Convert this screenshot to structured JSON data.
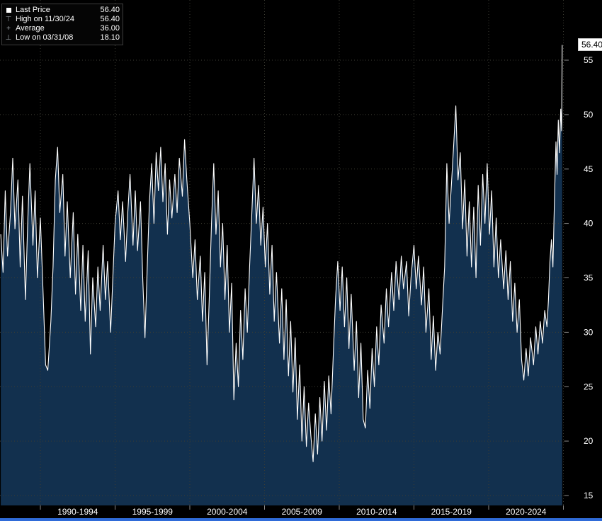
{
  "window": {
    "bg": "#000000"
  },
  "legend": {
    "rows": [
      {
        "icon": "square-marker",
        "label": "Last Price",
        "value": "56.40"
      },
      {
        "icon": "high-marker",
        "glyph": "⊤",
        "label": "High on 11/30/24",
        "value": "56.40"
      },
      {
        "icon": "average-marker",
        "glyph": "+",
        "label": "Average",
        "value": "36.00"
      },
      {
        "icon": "low-marker",
        "glyph": "⊥",
        "label": "Low on 03/31/08",
        "value": "18.10"
      }
    ]
  },
  "last_price_badge": "56.40",
  "colors": {
    "background": "#000000",
    "line": "#ffffff",
    "area_fill": "#12304e",
    "grid": "#3d3d33",
    "axis_text": "#ffffff",
    "tick": "#8a8a8a",
    "badge_bg": "#ffffff",
    "badge_text": "#000000",
    "bottom_bar": "#2f6bd8"
  },
  "chart_data": {
    "type": "area",
    "title": "",
    "xlabel": "",
    "ylabel": "",
    "legend_position": "top-left",
    "grid": true,
    "y_ticks": [
      15,
      20,
      25,
      30,
      35,
      40,
      45,
      50,
      55
    ],
    "ylim": [
      15,
      55
    ],
    "grid_years": [
      1990,
      1995,
      2000,
      2005,
      2010,
      2015,
      2020,
      2025
    ],
    "categories": [
      "1990-1994",
      "1995-1999",
      "2000-2004",
      "2005-2009",
      "2010-2014",
      "2015-2019",
      "2020-2024"
    ],
    "category_center_years": [
      1992.5,
      1997.5,
      2002.5,
      2007.5,
      2012.5,
      2017.5,
      2022.5
    ],
    "stats": {
      "last": 56.4,
      "high": {
        "date": "11/30/24",
        "value": 56.4
      },
      "average": 36.0,
      "low": {
        "date": "03/31/08",
        "value": 18.1
      }
    },
    "layout": {
      "x0px": 57,
      "x0year": 1990,
      "pxPerYear": 21.1,
      "yTopPx": 85,
      "yTopValue": 55,
      "pxPerUnit": 15.375,
      "plotLeft": 0,
      "plotRight": 797,
      "plotTop": 0,
      "plotBottom": 714,
      "yLabelX": 824,
      "xLabelY": 727
    },
    "series": [
      {
        "name": "Last Price",
        "points": [
          [
            1987.35,
            39
          ],
          [
            1987.5,
            35.5
          ],
          [
            1987.65,
            43
          ],
          [
            1987.8,
            37
          ],
          [
            1988.0,
            41
          ],
          [
            1988.15,
            46
          ],
          [
            1988.3,
            39.5
          ],
          [
            1988.5,
            44
          ],
          [
            1988.65,
            36
          ],
          [
            1988.8,
            42.5
          ],
          [
            1989.0,
            33
          ],
          [
            1989.15,
            40
          ],
          [
            1989.3,
            45.5
          ],
          [
            1989.5,
            38
          ],
          [
            1989.65,
            43
          ],
          [
            1989.8,
            35
          ],
          [
            1990.0,
            40.5
          ],
          [
            1990.2,
            33
          ],
          [
            1990.35,
            27
          ],
          [
            1990.5,
            26.5
          ],
          [
            1990.7,
            31
          ],
          [
            1990.85,
            36
          ],
          [
            1991.0,
            44
          ],
          [
            1991.15,
            47
          ],
          [
            1991.3,
            41
          ],
          [
            1991.5,
            44.5
          ],
          [
            1991.65,
            37
          ],
          [
            1991.8,
            42
          ],
          [
            1992.0,
            35
          ],
          [
            1992.2,
            41
          ],
          [
            1992.35,
            33.5
          ],
          [
            1992.5,
            39
          ],
          [
            1992.7,
            32
          ],
          [
            1992.85,
            38
          ],
          [
            1993.0,
            31
          ],
          [
            1993.2,
            37.5
          ],
          [
            1993.35,
            28
          ],
          [
            1993.5,
            35
          ],
          [
            1993.7,
            30.5
          ],
          [
            1993.85,
            36
          ],
          [
            1994.0,
            32
          ],
          [
            1994.2,
            38
          ],
          [
            1994.35,
            33
          ],
          [
            1994.5,
            36.5
          ],
          [
            1994.7,
            30
          ],
          [
            1994.85,
            35
          ],
          [
            1995.0,
            40
          ],
          [
            1995.2,
            43
          ],
          [
            1995.35,
            38.5
          ],
          [
            1995.5,
            42
          ],
          [
            1995.7,
            36.5
          ],
          [
            1995.85,
            41
          ],
          [
            1996.0,
            44.5
          ],
          [
            1996.2,
            38
          ],
          [
            1996.35,
            43
          ],
          [
            1996.5,
            37.5
          ],
          [
            1996.7,
            42
          ],
          [
            1996.85,
            35
          ],
          [
            1997.0,
            29.5
          ],
          [
            1997.15,
            36
          ],
          [
            1997.3,
            42
          ],
          [
            1997.45,
            45.5
          ],
          [
            1997.6,
            40
          ],
          [
            1997.75,
            46.5
          ],
          [
            1997.9,
            43
          ],
          [
            1998.05,
            47
          ],
          [
            1998.2,
            42
          ],
          [
            1998.35,
            45.5
          ],
          [
            1998.5,
            39
          ],
          [
            1998.65,
            44
          ],
          [
            1998.8,
            40.5
          ],
          [
            1999.0,
            44.5
          ],
          [
            1999.15,
            41
          ],
          [
            1999.3,
            46
          ],
          [
            1999.5,
            42.5
          ],
          [
            1999.65,
            47.7
          ],
          [
            1999.8,
            44
          ],
          [
            2000.0,
            40
          ],
          [
            2000.2,
            35
          ],
          [
            2000.35,
            38.5
          ],
          [
            2000.5,
            33
          ],
          [
            2000.7,
            37
          ],
          [
            2000.85,
            31
          ],
          [
            2001.0,
            35.5
          ],
          [
            2001.15,
            27
          ],
          [
            2001.3,
            33
          ],
          [
            2001.45,
            40
          ],
          [
            2001.6,
            45.5
          ],
          [
            2001.75,
            39
          ],
          [
            2001.9,
            43
          ],
          [
            2002.05,
            36
          ],
          [
            2002.2,
            40
          ],
          [
            2002.35,
            33
          ],
          [
            2002.5,
            38
          ],
          [
            2002.65,
            30
          ],
          [
            2002.8,
            34.5
          ],
          [
            2002.95,
            23.8
          ],
          [
            2003.1,
            29
          ],
          [
            2003.25,
            25
          ],
          [
            2003.4,
            32
          ],
          [
            2003.55,
            27.5
          ],
          [
            2003.7,
            34
          ],
          [
            2003.85,
            30
          ],
          [
            2004.0,
            36
          ],
          [
            2004.15,
            41
          ],
          [
            2004.3,
            46
          ],
          [
            2004.45,
            40
          ],
          [
            2004.6,
            43.5
          ],
          [
            2004.75,
            38
          ],
          [
            2004.9,
            41.5
          ],
          [
            2005.05,
            36
          ],
          [
            2005.2,
            40
          ],
          [
            2005.35,
            33.5
          ],
          [
            2005.5,
            38
          ],
          [
            2005.65,
            31
          ],
          [
            2005.8,
            35.5
          ],
          [
            2006.0,
            29
          ],
          [
            2006.15,
            34
          ],
          [
            2006.3,
            27.5
          ],
          [
            2006.45,
            33
          ],
          [
            2006.6,
            26
          ],
          [
            2006.75,
            31
          ],
          [
            2006.9,
            24.5
          ],
          [
            2007.05,
            29.5
          ],
          [
            2007.2,
            22
          ],
          [
            2007.35,
            27
          ],
          [
            2007.5,
            20
          ],
          [
            2007.65,
            25
          ],
          [
            2007.8,
            19.5
          ],
          [
            2007.95,
            23.5
          ],
          [
            2008.1,
            20.5
          ],
          [
            2008.25,
            18.1
          ],
          [
            2008.4,
            22.5
          ],
          [
            2008.55,
            18.8
          ],
          [
            2008.7,
            24
          ],
          [
            2008.85,
            20
          ],
          [
            2009.0,
            25.5
          ],
          [
            2009.15,
            21
          ],
          [
            2009.3,
            26
          ],
          [
            2009.45,
            22.5
          ],
          [
            2009.6,
            28
          ],
          [
            2009.75,
            33
          ],
          [
            2009.9,
            36.5
          ],
          [
            2010.05,
            32
          ],
          [
            2010.2,
            36
          ],
          [
            2010.35,
            30.5
          ],
          [
            2010.5,
            35
          ],
          [
            2010.65,
            28.5
          ],
          [
            2010.8,
            33.5
          ],
          [
            2011.0,
            26.5
          ],
          [
            2011.15,
            31
          ],
          [
            2011.3,
            24
          ],
          [
            2011.45,
            29
          ],
          [
            2011.6,
            22
          ],
          [
            2011.75,
            21.2
          ],
          [
            2011.9,
            26.5
          ],
          [
            2012.05,
            23
          ],
          [
            2012.2,
            28.5
          ],
          [
            2012.35,
            25
          ],
          [
            2012.5,
            30.5
          ],
          [
            2012.65,
            27
          ],
          [
            2012.8,
            32.5
          ],
          [
            2013.0,
            29
          ],
          [
            2013.15,
            34
          ],
          [
            2013.3,
            30.5
          ],
          [
            2013.5,
            35.5
          ],
          [
            2013.65,
            32
          ],
          [
            2013.8,
            36.5
          ],
          [
            2014.0,
            33
          ],
          [
            2014.15,
            37
          ],
          [
            2014.3,
            34
          ],
          [
            2014.5,
            36.5
          ],
          [
            2014.65,
            31.5
          ],
          [
            2014.8,
            35
          ],
          [
            2015.0,
            38
          ],
          [
            2015.15,
            34
          ],
          [
            2015.3,
            37
          ],
          [
            2015.5,
            32.5
          ],
          [
            2015.65,
            36
          ],
          [
            2015.8,
            30
          ],
          [
            2016.0,
            34
          ],
          [
            2016.15,
            27.5
          ],
          [
            2016.3,
            31.5
          ],
          [
            2016.45,
            26.5
          ],
          [
            2016.6,
            30
          ],
          [
            2016.75,
            28
          ],
          [
            2016.9,
            32
          ],
          [
            2017.05,
            36
          ],
          [
            2017.2,
            45.5
          ],
          [
            2017.35,
            40
          ],
          [
            2017.5,
            43.5
          ],
          [
            2017.65,
            47
          ],
          [
            2017.8,
            50.8
          ],
          [
            2017.95,
            44
          ],
          [
            2018.1,
            46.5
          ],
          [
            2018.25,
            39.5
          ],
          [
            2018.4,
            44
          ],
          [
            2018.55,
            37
          ],
          [
            2018.7,
            42
          ],
          [
            2018.85,
            36
          ],
          [
            2019.0,
            41.5
          ],
          [
            2019.15,
            35
          ],
          [
            2019.3,
            43.5
          ],
          [
            2019.45,
            38
          ],
          [
            2019.6,
            44.5
          ],
          [
            2019.75,
            40
          ],
          [
            2019.9,
            45.5
          ],
          [
            2020.05,
            39
          ],
          [
            2020.2,
            43
          ],
          [
            2020.35,
            36
          ],
          [
            2020.5,
            40.5
          ],
          [
            2020.65,
            35
          ],
          [
            2020.8,
            38.5
          ],
          [
            2021.0,
            34
          ],
          [
            2021.15,
            37.5
          ],
          [
            2021.3,
            33
          ],
          [
            2021.45,
            36.5
          ],
          [
            2021.6,
            31
          ],
          [
            2021.75,
            34.5
          ],
          [
            2021.9,
            30
          ],
          [
            2022.05,
            33
          ],
          [
            2022.2,
            27.5
          ],
          [
            2022.35,
            25.6
          ],
          [
            2022.5,
            28.5
          ],
          [
            2022.65,
            26
          ],
          [
            2022.8,
            29.5
          ],
          [
            2023.0,
            27
          ],
          [
            2023.15,
            30.5
          ],
          [
            2023.3,
            28
          ],
          [
            2023.45,
            31
          ],
          [
            2023.6,
            29
          ],
          [
            2023.75,
            32
          ],
          [
            2023.9,
            30.5
          ],
          [
            2024.0,
            33
          ],
          [
            2024.1,
            36.5
          ],
          [
            2024.2,
            38.5
          ],
          [
            2024.3,
            36
          ],
          [
            2024.4,
            42
          ],
          [
            2024.5,
            47.5
          ],
          [
            2024.58,
            44.5
          ],
          [
            2024.66,
            49.5
          ],
          [
            2024.74,
            46.5
          ],
          [
            2024.82,
            50.5
          ],
          [
            2024.88,
            48.5
          ],
          [
            2024.92,
            56.4
          ]
        ]
      }
    ]
  }
}
